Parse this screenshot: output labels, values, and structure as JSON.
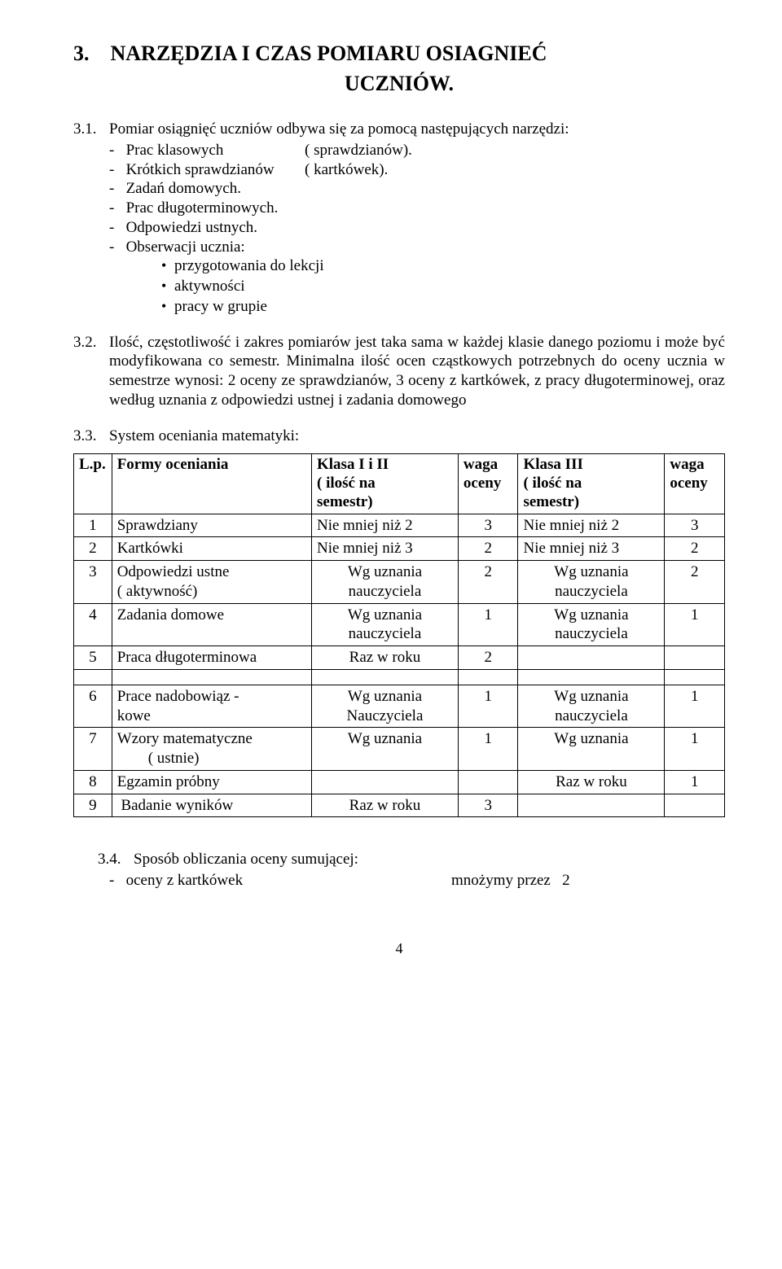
{
  "heading_line1": "3.    NARZĘDZIA I CZAS POMIARU OSIAGNIEĆ",
  "heading_line2": "UCZNIÓW.",
  "p31_num": "3.1.",
  "p31_text": "Pomiar osiągnięć uczniów odbywa się za pomocą następujących narzędzi:",
  "p31_items": [
    {
      "label": "-   Prac klasowych",
      "right": "( sprawdzianów)."
    },
    {
      "label": "-   Krótkich sprawdzianów",
      "right": "( kartkówek)."
    },
    {
      "label": "-   Zadań domowych.",
      "right": ""
    },
    {
      "label": "-   Prac długoterminowych.",
      "right": ""
    },
    {
      "label": "-   Odpowiedzi ustnych.",
      "right": ""
    },
    {
      "label": "-   Obserwacji ucznia:",
      "right": ""
    }
  ],
  "p31_sub_bullets": [
    "przygotowania do lekcji",
    "aktywności",
    "pracy w grupie"
  ],
  "p32_num": "3.2.",
  "p32_text": "Ilość, częstotliwość i zakres pomiarów jest taka sama w każdej klasie danego poziomu i może być modyfikowana co semestr. Minimalna ilość ocen cząstkowych potrzebnych do oceny ucznia w semestrze wynosi: 2 oceny ze sprawdzianów, 3 oceny z kartkówek, z pracy długoterminowej, oraz według uznania z odpowiedzi ustnej i zadania domowego",
  "p33_num": "3.3.",
  "p33_text": "System oceniania matematyki:",
  "tbl_header": {
    "lp": "L.p.",
    "form": "Formy oceniania",
    "k12_l1": "Klasa I i II",
    "k12_l2": "( ilość na",
    "k12_l3": "semestr)",
    "w1_l1": "waga",
    "w1_l2": "oceny",
    "k3_l1": "Klasa III",
    "k3_l2": "( ilość na",
    "k3_l3": "semestr)",
    "w2_l1": "waga",
    "w2_l2": "oceny"
  },
  "tbl_rows": [
    {
      "lp": "1",
      "form": "Sprawdziany",
      "k12": "Nie mniej niż 2",
      "w1": "3",
      "k3": "Nie mniej niż 2",
      "w2": "3",
      "k12_align": "left",
      "k3_align": "left"
    },
    {
      "lp": "2",
      "form": "Kartkówki",
      "k12": "Nie mniej niż 3",
      "w1": "2",
      "k3": "Nie mniej niż 3",
      "w2": "2",
      "k12_align": "left",
      "k3_align": "left"
    },
    {
      "lp": "3",
      "form": "Odpowiedzi ustne\n( aktywność)",
      "k12": "Wg uznania\nnauczyciela",
      "w1": "2",
      "k3": "Wg uznania\nnauczyciela",
      "w2": "2",
      "k12_align": "center",
      "k3_align": "center"
    },
    {
      "lp": "4",
      "form": "Zadania domowe",
      "k12": "Wg uznania\nnauczyciela",
      "w1": "1",
      "k3": "Wg uznania\nnauczyciela",
      "w2": "1",
      "k12_align": "center",
      "k3_align": "center"
    },
    {
      "lp": "5",
      "form": "Praca długoterminowa",
      "k12": "Raz w  roku",
      "w1": "2",
      "k3": "",
      "w2": "",
      "k12_align": "center",
      "k3_align": "center"
    }
  ],
  "tbl_rows2": [
    {
      "lp": "6",
      "form": "Prace nadobowiąz -\nkowe",
      "k12": "Wg uznania\nNauczyciela",
      "w1": "1",
      "k3": "Wg uznania\nnauczyciela",
      "w2": "1",
      "k12_align": "center",
      "k3_align": "center"
    },
    {
      "lp": "7",
      "form": "Wzory matematyczne\n        ( ustnie)",
      "k12": "Wg uznania",
      "w1": "1",
      "k3": "Wg uznania",
      "w2": "1",
      "k12_align": "center",
      "k3_align": "center"
    },
    {
      "lp": "8",
      "form": "Egzamin próbny",
      "k12": "",
      "w1": "",
      "k3": "Raz w roku",
      "w2": "1",
      "k12_align": "center",
      "k3_align": "center"
    },
    {
      "lp": "9",
      "form": " Badanie wyników",
      "k12": "Raz w roku",
      "w1": "3",
      "k3": "",
      "w2": "",
      "k12_align": "center",
      "k3_align": "center"
    }
  ],
  "p34_num": "3.4.",
  "p34_text": "Sposób obliczania oceny sumującej:",
  "p34_item_label": "-   oceny z kartkówek",
  "p34_item_right": "mnożymy przez   2",
  "page_number": "4"
}
